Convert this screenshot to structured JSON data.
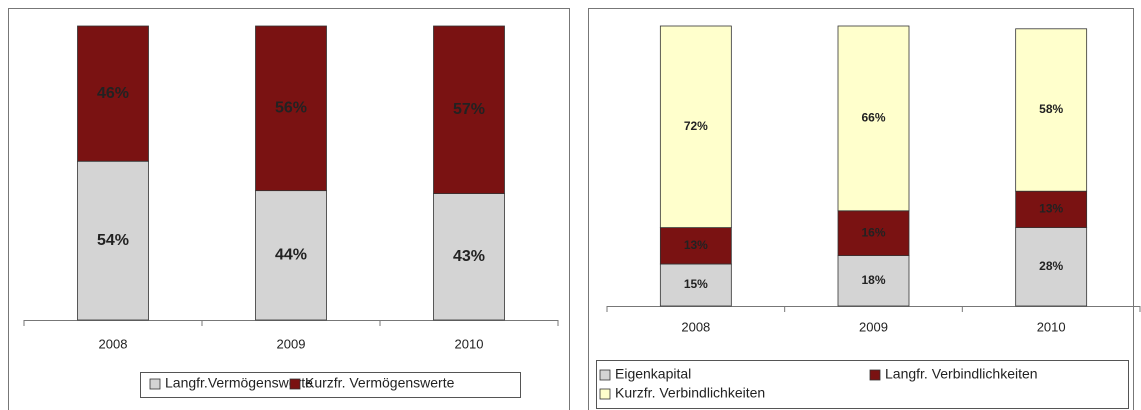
{
  "chart_data": [
    {
      "type": "bar",
      "stacked": true,
      "categories": [
        "2008",
        "2009",
        "2010"
      ],
      "ylim": [
        0,
        100
      ],
      "legend": "bottom",
      "series": [
        {
          "name": "Langfr.Vermögenswerte",
          "color": "#d4d4d4",
          "values": [
            54,
            44,
            43
          ],
          "value_labels": [
            "54%",
            "44%",
            "43%"
          ]
        },
        {
          "name": "Kurzfr. Vermögenswerte",
          "color": "#7a1212",
          "values": [
            46,
            56,
            57
          ],
          "value_labels": [
            "46%",
            "56%",
            "57%"
          ]
        }
      ]
    },
    {
      "type": "bar",
      "stacked": true,
      "categories": [
        "2008",
        "2009",
        "2010"
      ],
      "ylim": [
        0,
        100
      ],
      "legend": "bottom",
      "series": [
        {
          "name": "Eigenkapital",
          "color": "#d4d4d4",
          "values": [
            15,
            18,
            28
          ],
          "value_labels": [
            "15%",
            "18%",
            "28%"
          ]
        },
        {
          "name": "Langfr. Verbindlichkeiten",
          "color": "#7a1212",
          "values": [
            13,
            16,
            13
          ],
          "value_labels": [
            "13%",
            "16%",
            "13%"
          ]
        },
        {
          "name": "Kurzfr. Verbindlichkeiten",
          "color": "#ffffcc",
          "values": [
            72,
            66,
            58
          ],
          "value_labels": [
            "72%",
            "66%",
            "58%"
          ]
        }
      ]
    }
  ]
}
